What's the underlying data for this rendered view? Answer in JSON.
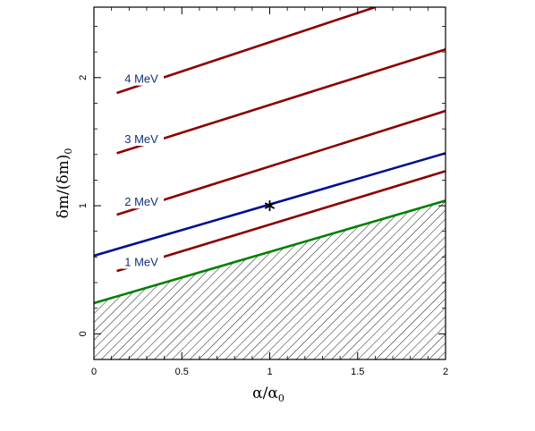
{
  "chart_data": {
    "type": "line",
    "xlabel": "α/α",
    "xlabel_subscript": "0",
    "ylabel": "δm/(δm)",
    "ylabel_subscript": "0",
    "xlim": [
      0,
      2
    ],
    "ylim": [
      -0.2,
      2.55
    ],
    "x_ticks": [
      {
        "v": 0,
        "label": "0"
      },
      {
        "v": 0.5,
        "label": "0.5"
      },
      {
        "v": 1,
        "label": "1"
      },
      {
        "v": 1.5,
        "label": "1.5"
      },
      {
        "v": 2,
        "label": "2"
      }
    ],
    "y_ticks": [
      {
        "v": 0,
        "label": "0"
      },
      {
        "v": 1,
        "label": "1"
      },
      {
        "v": 2,
        "label": "2"
      }
    ],
    "grid": false,
    "series": [
      {
        "name": "1 MeV",
        "color": "#8b0000",
        "x": [
          0.13,
          2
        ],
        "y": [
          0.49,
          1.27
        ],
        "label_at": [
          0.27,
          0.55
        ]
      },
      {
        "name": "2 MeV",
        "color": "#8b0000",
        "x": [
          0.13,
          2
        ],
        "y": [
          0.93,
          1.74
        ],
        "label_at": [
          0.27,
          1.02
        ]
      },
      {
        "name": "3 MeV",
        "color": "#8b0000",
        "x": [
          0.13,
          2
        ],
        "y": [
          1.41,
          2.22
        ],
        "label_at": [
          0.27,
          1.51
        ]
      },
      {
        "name": "4 MeV",
        "color": "#8b0000",
        "x": [
          0.13,
          1.6
        ],
        "y": [
          1.88,
          2.55
        ],
        "label_at": [
          0.27,
          1.98
        ]
      },
      {
        "name": "",
        "color": "#000f8f",
        "x": [
          0,
          2
        ],
        "y": [
          0.61,
          1.41
        ]
      },
      {
        "name": "",
        "color": "#008000",
        "x": [
          0,
          2
        ],
        "y": [
          0.24,
          1.04
        ]
      }
    ],
    "excluded_region": {
      "hatch": "diagonal",
      "below_series_index": 5
    },
    "marker": {
      "symbol": "asterisk",
      "x": 1,
      "y": 1
    }
  }
}
